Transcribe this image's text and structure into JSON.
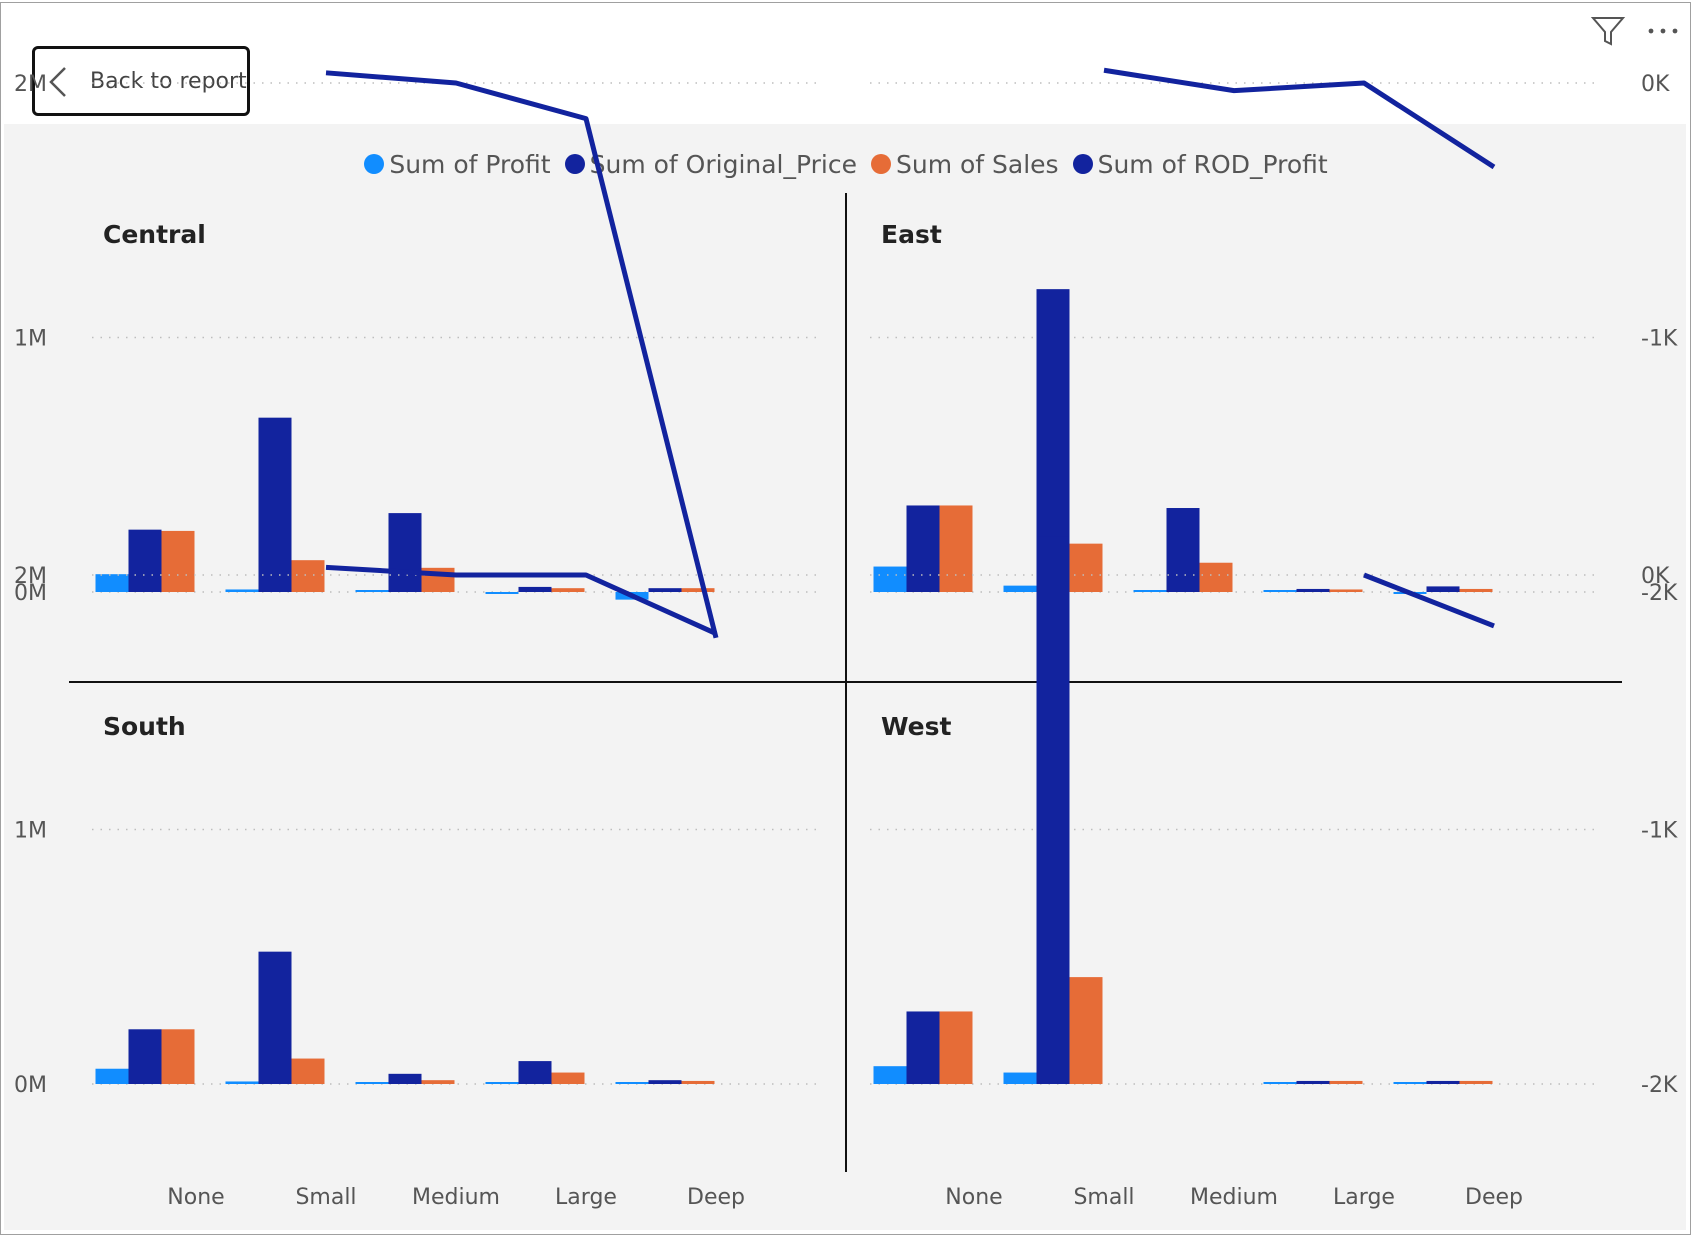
{
  "toolbar": {
    "back_label": "Back to report",
    "back_icon": "chevron-left-icon",
    "filter_icon": "filter-icon",
    "more_icon": "more-options-icon"
  },
  "legend": [
    {
      "label": "Sum of Profit",
      "color": "#118DFF"
    },
    {
      "label": "Sum of Original_Price",
      "color": "#12239E"
    },
    {
      "label": "Sum of Sales",
      "color": "#E66C37"
    },
    {
      "label": "Sum of ROD_Profit",
      "color": "#12239E"
    }
  ],
  "chart_data": {
    "type": "bar",
    "layout": "small-multiples 2x2",
    "categories": [
      "None",
      "Small",
      "Medium",
      "Large",
      "Deep"
    ],
    "y_left": {
      "ticks": [
        "2M",
        "1M",
        "0M"
      ],
      "values": [
        2000000,
        1000000,
        0
      ]
    },
    "y_right": {
      "ticks": [
        "0K",
        "-1K",
        "-2K"
      ],
      "values": [
        0,
        -1000,
        -2000
      ]
    },
    "grid": true,
    "legend_position": "top-center",
    "panels": [
      {
        "title": "Central",
        "series": [
          {
            "name": "Sum of Profit",
            "type": "bar",
            "values": [
              70000,
              10000,
              4000,
              -2000,
              -30000
            ]
          },
          {
            "name": "Sum of Original_Price",
            "type": "bar",
            "values": [
              245000,
              685000,
              310000,
              20000,
              15000
            ]
          },
          {
            "name": "Sum of Sales",
            "type": "bar",
            "values": [
              240000,
              125000,
              95000,
              15000,
              15000
            ]
          },
          {
            "name": "Sum of ROD_Profit",
            "type": "line",
            "axis": "right",
            "values": [
              null,
              40,
              0,
              -140,
              -2180
            ]
          }
        ]
      },
      {
        "title": "East",
        "series": [
          {
            "name": "Sum of Profit",
            "type": "bar",
            "values": [
              100000,
              25000,
              4000,
              3000,
              -5000
            ]
          },
          {
            "name": "Sum of Original_Price",
            "type": "bar",
            "values": [
              340000,
              1190000,
              330000,
              12000,
              22000
            ]
          },
          {
            "name": "Sum of Sales",
            "type": "bar",
            "values": [
              340000,
              190000,
              115000,
              10000,
              12000
            ]
          },
          {
            "name": "Sum of ROD_Profit",
            "type": "line",
            "axis": "right",
            "values": [
              null,
              50,
              -30,
              0,
              -330
            ]
          }
        ]
      },
      {
        "title": "South",
        "series": [
          {
            "name": "Sum of Profit",
            "type": "bar",
            "values": [
              60000,
              10000,
              3000,
              3000,
              3000
            ]
          },
          {
            "name": "Sum of Original_Price",
            "type": "bar",
            "values": [
              215000,
              520000,
              40000,
              90000,
              15000
            ]
          },
          {
            "name": "Sum of Sales",
            "type": "bar",
            "values": [
              215000,
              100000,
              15000,
              45000,
              12000
            ]
          },
          {
            "name": "Sum of ROD_Profit",
            "type": "line",
            "axis": "right",
            "values": [
              null,
              30,
              0,
              0,
              -230
            ]
          }
        ]
      },
      {
        "title": "West",
        "series": [
          {
            "name": "Sum of Profit",
            "type": "bar",
            "values": [
              70000,
              45000,
              null,
              3000,
              3000
            ]
          },
          {
            "name": "Sum of Original_Price",
            "type": "bar",
            "values": [
              285000,
              2150000,
              null,
              12000,
              12000
            ]
          },
          {
            "name": "Sum of Sales",
            "type": "bar",
            "values": [
              285000,
              420000,
              null,
              12000,
              12000
            ]
          },
          {
            "name": "Sum of ROD_Profit",
            "type": "line",
            "axis": "right",
            "values": [
              null,
              null,
              null,
              0,
              -200
            ]
          }
        ]
      }
    ]
  }
}
